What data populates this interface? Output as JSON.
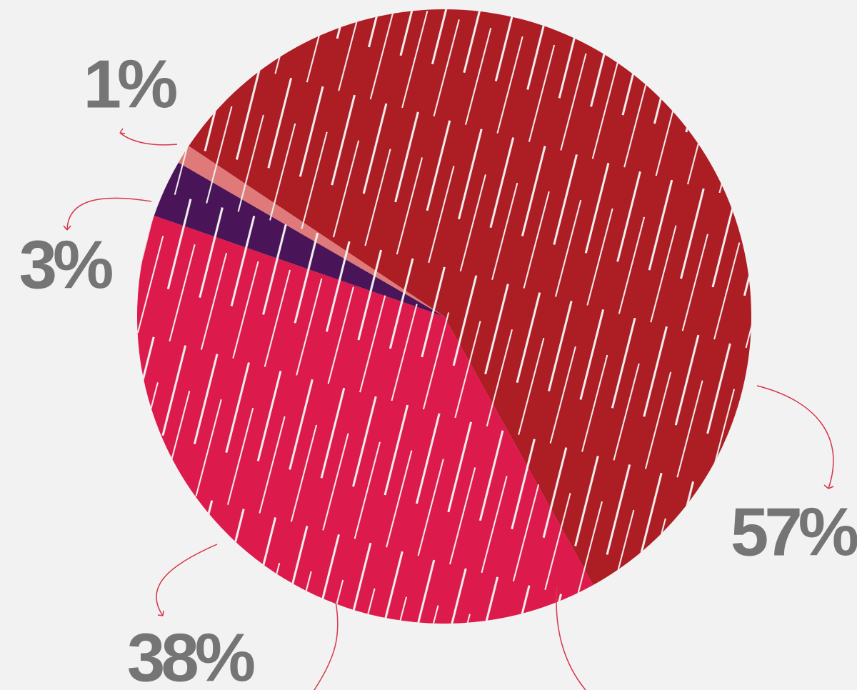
{
  "chart_data": {
    "type": "pie",
    "values": [
      57,
      38,
      3,
      1
    ],
    "value_labels": [
      "57%",
      "38%",
      "3%",
      "1%"
    ],
    "colors": [
      "#ad1d24",
      "#dc1a4b",
      "#4a1558",
      "#e07a7a"
    ]
  }
}
